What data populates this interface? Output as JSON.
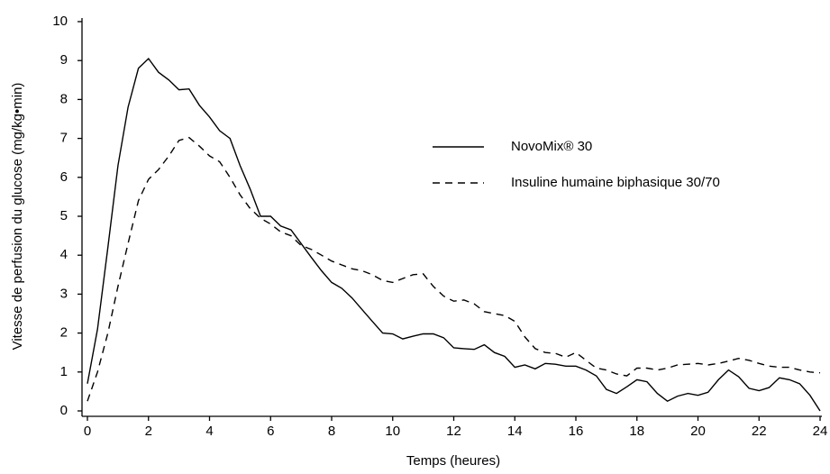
{
  "chart_data": {
    "type": "line",
    "xlabel": "Temps (heures)",
    "ylabel": "Vitesse de perfusion du glucose (mg/kg•min)",
    "x": [
      0,
      0.33,
      0.67,
      1,
      1.33,
      1.67,
      2,
      2.33,
      2.67,
      3,
      3.33,
      3.67,
      4,
      4.33,
      4.67,
      5,
      5.33,
      5.67,
      6,
      6.33,
      6.67,
      7,
      7.33,
      7.67,
      8,
      8.33,
      8.67,
      9,
      9.33,
      9.67,
      10,
      10.33,
      10.67,
      11,
      11.33,
      11.67,
      12,
      12.33,
      12.67,
      13,
      13.33,
      13.67,
      14,
      14.33,
      14.67,
      15,
      15.33,
      15.67,
      16,
      16.33,
      16.67,
      17,
      17.33,
      17.67,
      18,
      18.33,
      18.67,
      19,
      19.33,
      19.67,
      20,
      20.33,
      20.67,
      21,
      21.33,
      21.67,
      22,
      22.33,
      22.67,
      23,
      23.33,
      23.67,
      24
    ],
    "series": [
      {
        "name": "NovoMix® 30",
        "color": "#000000",
        "style": "solid",
        "values": [
          0.7,
          2.1,
          4.2,
          6.3,
          7.8,
          8.8,
          9.05,
          8.7,
          8.5,
          8.25,
          8.27,
          7.85,
          7.55,
          7.2,
          7.0,
          6.3,
          5.7,
          5.0,
          5.0,
          4.75,
          4.65,
          4.3,
          3.95,
          3.6,
          3.3,
          3.15,
          2.9,
          2.6,
          2.3,
          2.0,
          1.98,
          1.85,
          1.92,
          1.98,
          1.98,
          1.88,
          1.62,
          1.6,
          1.58,
          1.7,
          1.5,
          1.4,
          1.12,
          1.18,
          1.08,
          1.22,
          1.2,
          1.15,
          1.15,
          1.05,
          0.9,
          0.55,
          0.45,
          0.62,
          0.8,
          0.75,
          0.45,
          0.25,
          0.38,
          0.45,
          0.4,
          0.48,
          0.8,
          1.05,
          0.88,
          0.58,
          0.52,
          0.6,
          0.85,
          0.8,
          0.7,
          0.4,
          0.0
        ]
      },
      {
        "name": "Insuline humaine biphasique 30/70",
        "color": "#000000",
        "style": "dashed",
        "values": [
          0.25,
          1.0,
          2.0,
          3.2,
          4.3,
          5.4,
          5.95,
          6.2,
          6.55,
          6.95,
          7.02,
          6.8,
          6.55,
          6.4,
          6.0,
          5.55,
          5.2,
          4.95,
          4.8,
          4.6,
          4.5,
          4.25,
          4.15,
          4.0,
          3.85,
          3.75,
          3.65,
          3.6,
          3.5,
          3.35,
          3.3,
          3.4,
          3.5,
          3.52,
          3.2,
          2.95,
          2.82,
          2.85,
          2.75,
          2.55,
          2.5,
          2.45,
          2.3,
          1.9,
          1.6,
          1.5,
          1.48,
          1.38,
          1.5,
          1.3,
          1.1,
          1.05,
          0.95,
          0.9,
          1.1,
          1.1,
          1.05,
          1.1,
          1.18,
          1.2,
          1.22,
          1.18,
          1.22,
          1.28,
          1.35,
          1.3,
          1.22,
          1.15,
          1.12,
          1.12,
          1.05,
          1.0,
          0.98
        ]
      }
    ],
    "xlim": [
      0,
      24
    ],
    "xticks": [
      0,
      2,
      4,
      6,
      8,
      10,
      12,
      14,
      16,
      18,
      20,
      22,
      24
    ],
    "ylim": [
      0,
      10
    ],
    "yticks": [
      0,
      1,
      2,
      3,
      4,
      5,
      6,
      7,
      8,
      9,
      10
    ]
  }
}
